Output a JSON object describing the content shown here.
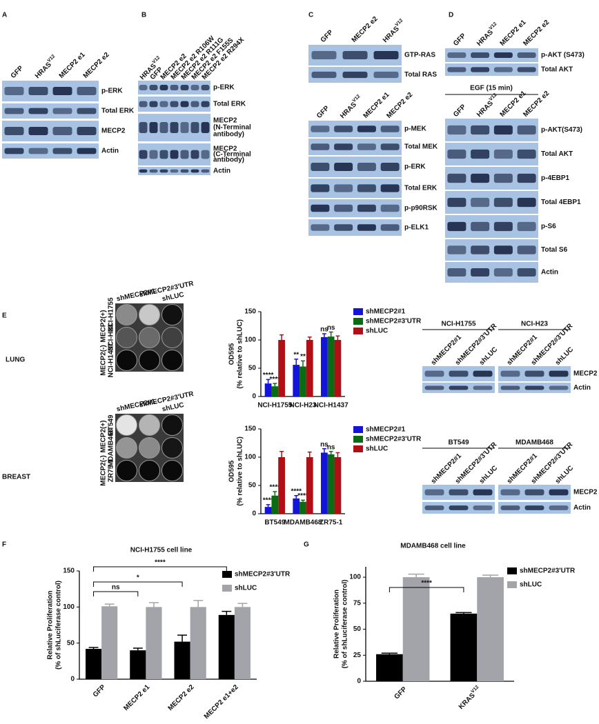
{
  "panel_letters": [
    "A",
    "B",
    "C",
    "D",
    "E",
    "F",
    "G"
  ],
  "tissues": [
    "LUNG",
    "BREAST"
  ],
  "blots": {
    "A": {
      "lanes": [
        "GFP",
        {
          "text": "HRAS",
          "sup": "V12"
        },
        "MECP2 e1",
        "MECP2 e2"
      ],
      "rows": [
        [
          "p-ERK"
        ],
        [
          "Total ERK"
        ],
        [
          "MECP2"
        ],
        [
          "Actin"
        ]
      ]
    },
    "B": {
      "lanes": [
        {
          "text": "HRAS",
          "sup": "V12"
        },
        "GFP",
        "MECP2 e2",
        "MECP2 e2 R106W",
        "MECP2 e2 R111G",
        "MECP2 e2 F155S",
        "MECP2 e2 R294X"
      ],
      "rows": [
        [
          "p-ERK"
        ],
        [
          "Total ERK"
        ],
        [
          "MECP2",
          "(N-Terminal",
          " antibody)"
        ],
        [
          "MECP2",
          "(C-Terminal",
          "antibody)"
        ],
        [
          "Actin"
        ]
      ]
    },
    "C_top": {
      "lanes": [
        "GFP",
        "MECP2 e2",
        {
          "text": "HRAS",
          "sup": "V12"
        }
      ],
      "rows": [
        [
          "GTP-RAS"
        ],
        [
          "Total RAS"
        ]
      ]
    },
    "C_bottom": {
      "lanes": [
        "GFP",
        {
          "text": "HRAS",
          "sup": "V12"
        },
        "MECP2 e1",
        "MECP2 e2"
      ],
      "rows": [
        [
          "p-MEK"
        ],
        [
          "Total MEK"
        ],
        [
          "p-ERK"
        ],
        [
          "Total ERK"
        ],
        [
          "p-p90RSK"
        ],
        [
          "p-ELK1"
        ]
      ]
    },
    "D_top": {
      "lanes": [
        "GFP",
        {
          "text": "HRAS",
          "sup": "V12"
        },
        "MECP2 e1",
        "MECP2 e2"
      ],
      "rows": [
        [
          "p-AKT (S473)"
        ],
        [
          "Total AKT"
        ]
      ]
    },
    "D_bottom": {
      "header": "EGF (15 min)",
      "lanes": [
        "GFP",
        {
          "text": "HRAS",
          "sup": "V12"
        },
        "MECP2 e1",
        "MECP2 e2"
      ],
      "rows": [
        [
          "p-AKT(S473)"
        ],
        [
          "Total AKT"
        ],
        [
          "p-4EBP1"
        ],
        [
          "Total 4EBP1"
        ],
        [
          "p-S6"
        ],
        [
          "Total S6"
        ],
        [
          "Actin"
        ]
      ]
    },
    "E_lung": {
      "groups": [
        "NCI-H1755",
        "NCI-H23"
      ],
      "lanes": [
        "shMECP2#1",
        "shMECP2#3'UTR",
        "shLUC"
      ],
      "rows": [
        [
          "MECP2"
        ],
        [
          "Actin"
        ]
      ]
    },
    "E_breast": {
      "groups": [
        "BT549",
        "MDAMB468"
      ],
      "lanes": [
        "shMECP2#1",
        "shMECP2#3'UTR",
        "shLUC"
      ],
      "rows": [
        [
          "MECP2"
        ],
        [
          "Actin"
        ]
      ]
    }
  },
  "plates": {
    "E_lung": {
      "columns": [
        "shMECP2#1",
        "shMECP2#3'UTR",
        "shLUC"
      ],
      "groups": [
        {
          "label": "MECP2(+)",
          "lines": [
            "NCI-H1755",
            "NCI-H23"
          ]
        },
        {
          "label": "MECP2(-)",
          "lines": [
            "NCI-H1437"
          ]
        }
      ]
    },
    "E_breast": {
      "columns": [
        "shMECP2#1",
        "shMECP2#3'UTR",
        "shLUC"
      ],
      "groups": [
        {
          "label": "MECP2(+)",
          "lines": [
            "BT549",
            "MDAMB468"
          ]
        },
        {
          "label": "MECP2(-)",
          "lines": [
            "ZR75-1"
          ]
        }
      ]
    }
  },
  "chart_data": [
    {
      "type": "bar",
      "y_label": [
        "OD595",
        "(% relative to shLUC)"
      ],
      "categories": [
        "NCI-H1755",
        "NCI-H23",
        "NCI-H1437"
      ],
      "series": [
        {
          "name": "shMECP2#1",
          "color": "#1414d8",
          "values": [
            23,
            56,
            105
          ],
          "errors": [
            7,
            10,
            6
          ],
          "annotations": [
            "****",
            "**",
            "ns"
          ]
        },
        {
          "name": "shMECP2#3'UTR",
          "color": "#0b6b12",
          "values": [
            18,
            53,
            106
          ],
          "errors": [
            5,
            10,
            8
          ],
          "annotations": [
            "****",
            "**",
            "ns"
          ]
        },
        {
          "name": "shLUC",
          "color": "#b01015",
          "values": [
            100,
            100,
            100
          ],
          "errors": [
            9,
            5,
            7
          ]
        }
      ],
      "ylim": [
        0,
        150
      ],
      "yticks": [
        0,
        50,
        100,
        150
      ]
    },
    {
      "type": "bar",
      "y_label": [
        "OD595",
        "(% relative to shLUC)"
      ],
      "categories": [
        "BT549",
        "MDAMB468",
        "ZR75-1"
      ],
      "series": [
        {
          "name": "shMECP2#1",
          "color": "#1414d8",
          "values": [
            12,
            27,
            108
          ],
          "errors": [
            4,
            5,
            7
          ],
          "annotations": [
            "****",
            "****",
            "ns"
          ]
        },
        {
          "name": "shMECP2#3'UTR",
          "color": "#0b6b12",
          "values": [
            32,
            21,
            105
          ],
          "errors": [
            7,
            3,
            5
          ],
          "annotations": [
            "****",
            "****",
            "ns"
          ]
        },
        {
          "name": "shLUC",
          "color": "#b01015",
          "values": [
            100,
            100,
            100
          ],
          "errors": [
            10,
            9,
            8
          ]
        }
      ],
      "ylim": [
        0,
        150
      ],
      "yticks": [
        0,
        50,
        100,
        150
      ]
    },
    {
      "type": "bar",
      "title": "NCI-H1755 cell line",
      "y_label": [
        "Relative Proliferation",
        "(% of shLuciferase control)"
      ],
      "categories": [
        "GFP",
        "MECP2 e1",
        "MECP2 e2",
        "MECP2 e1+e2"
      ],
      "series": [
        {
          "name": "shMECP2#3'UTR",
          "color": "#000000",
          "values": [
            42,
            40,
            52,
            89
          ],
          "errors": [
            2,
            3,
            9,
            5
          ]
        },
        {
          "name": "shLUC",
          "color": "#a3a3aa",
          "values": [
            101,
            100,
            100,
            100
          ],
          "errors": [
            3,
            6,
            9,
            5
          ]
        }
      ],
      "brackets": [
        {
          "from": 0,
          "to": 3,
          "label": "****"
        },
        {
          "from": 0,
          "to": 2,
          "label": "*"
        },
        {
          "from": 0,
          "to": 1,
          "label": "ns"
        }
      ],
      "ylim": [
        0,
        150
      ],
      "yticks": [
        0,
        50,
        100,
        150
      ]
    },
    {
      "type": "bar",
      "title": "MDAMB468 cell line",
      "y_label": [
        "Relative Proliferation",
        "(% of shLuciferase control)"
      ],
      "categories": [
        "GFP",
        {
          "text": "KRAS",
          "sup": "V12"
        }
      ],
      "series": [
        {
          "name": "shMECP2#3'UTR",
          "color": "#000000",
          "values": [
            26,
            65
          ],
          "errors": [
            1,
            1
          ]
        },
        {
          "name": "shLUC",
          "color": "#a3a3aa",
          "values": [
            100,
            100
          ],
          "errors": [
            3,
            2
          ]
        }
      ],
      "brackets": [
        {
          "from": 0,
          "to": 1,
          "label": "****"
        }
      ],
      "ylim": [
        0,
        110
      ],
      "yticks": [
        0,
        25,
        50,
        75,
        100
      ]
    }
  ]
}
